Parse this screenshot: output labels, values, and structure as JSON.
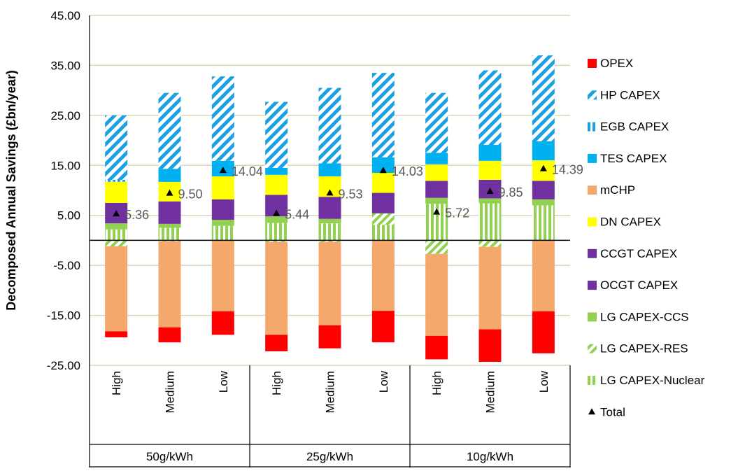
{
  "chart_data": {
    "type": "bar",
    "stacked": true,
    "title": "",
    "xlabel": "",
    "ylabel": "Decomposed Annual Savings (£bn/year)",
    "ylim": [
      -25,
      45
    ],
    "yticks": [
      "45.00",
      "35.00",
      "25.00",
      "15.00",
      "5.00",
      "-5.00",
      "-15.00",
      "-25.00"
    ],
    "grid": true,
    "legend_position": "right",
    "categories": [
      "High",
      "Medium",
      "Low",
      "High",
      "Medium",
      "Low",
      "High",
      "Medium",
      "Low"
    ],
    "groups": [
      {
        "label": "50g/kWh",
        "categories": [
          "High",
          "Medium",
          "Low"
        ]
      },
      {
        "label": "25g/kWh",
        "categories": [
          "High",
          "Medium",
          "Low"
        ]
      },
      {
        "label": "10g/kWh",
        "categories": [
          "High",
          "Medium",
          "Low"
        ]
      }
    ],
    "series": [
      {
        "name": "OPEX",
        "color": "#ff0000",
        "pattern": "solid",
        "values": [
          -1.2,
          -3.0,
          -4.7,
          -3.3,
          -4.6,
          -6.3,
          -4.7,
          -6.5,
          -8.4
        ]
      },
      {
        "name": "HP CAPEX",
        "color": "#1ba1e2",
        "pattern": "diagonal",
        "values": [
          12.9,
          15.2,
          16.9,
          13.2,
          15.1,
          16.9,
          12.0,
          14.9,
          17.2
        ]
      },
      {
        "name": "EGB CAPEX",
        "color": "#1ba1e2",
        "pattern": "vertical",
        "values": [
          0.4,
          0.0,
          0.0,
          0.0,
          0.0,
          0.0,
          0.0,
          0.0,
          0.0
        ]
      },
      {
        "name": "TES CAPEX",
        "color": "#00b0f0",
        "pattern": "solid",
        "values": [
          0.0,
          2.6,
          3.1,
          1.4,
          2.6,
          3.1,
          2.3,
          3.2,
          3.8
        ]
      },
      {
        "name": "mCHP",
        "color": "#f4a86b",
        "pattern": "solid",
        "values": [
          -17.0,
          -17.2,
          -14.2,
          -18.6,
          -16.7,
          -14.1,
          -16.4,
          -16.5,
          -14.2
        ]
      },
      {
        "name": "DN CAPEX",
        "color": "#ffff00",
        "pattern": "solid",
        "values": [
          4.2,
          3.9,
          4.6,
          4.0,
          4.1,
          4.0,
          3.3,
          3.8,
          4.1
        ]
      },
      {
        "name": "CCGT CAPEX",
        "color": "#7030a0",
        "pattern": "solid",
        "values": [
          0.0,
          0.0,
          0.0,
          0.0,
          0.0,
          0.0,
          0.0,
          0.0,
          0.0
        ]
      },
      {
        "name": "OCGT CAPEX",
        "color": "#7030a0",
        "pattern": "solid",
        "values": [
          4.1,
          4.5,
          4.1,
          4.3,
          4.4,
          4.1,
          3.4,
          3.7,
          3.7
        ]
      },
      {
        "name": "LG CAPEX-CCS",
        "color": "#92d050",
        "pattern": "solid",
        "values": [
          1.2,
          0.8,
          1.2,
          1.3,
          0.9,
          0.0,
          1.2,
          1.0,
          1.2
        ]
      },
      {
        "name": "LG CAPEX-RES",
        "color": "#92d050",
        "pattern": "diagonal",
        "values": [
          -1.2,
          -0.2,
          0.0,
          -0.3,
          -0.3,
          2.3,
          -2.7,
          -1.3,
          0.0
        ]
      },
      {
        "name": "LG CAPEX-Nuclear",
        "color": "#92d050",
        "pattern": "vertical",
        "values": [
          2.2,
          2.5,
          2.9,
          3.5,
          3.4,
          3.1,
          7.3,
          7.4,
          7.0
        ]
      },
      {
        "name": "Total",
        "marker": "triangle",
        "color": "#000000",
        "values": [
          5.36,
          9.5,
          14.04,
          5.44,
          9.53,
          14.03,
          5.72,
          9.85,
          14.39
        ]
      }
    ],
    "total_labels": [
      "5.36",
      "9.50",
      "14.04",
      "5.44",
      "9.53",
      "14.03",
      "5.72",
      "9.85",
      "14.39"
    ]
  },
  "legend": {
    "items": [
      {
        "label": "OPEX",
        "swatch": "solid",
        "color": "#ff0000"
      },
      {
        "label": "HP CAPEX",
        "swatch": "diagonal",
        "color": "#1ba1e2"
      },
      {
        "label": "EGB CAPEX",
        "swatch": "vertical",
        "color": "#1ba1e2"
      },
      {
        "label": "TES CAPEX",
        "swatch": "solid",
        "color": "#00b0f0"
      },
      {
        "label": "mCHP",
        "swatch": "solid",
        "color": "#f4a86b"
      },
      {
        "label": "DN CAPEX",
        "swatch": "solid",
        "color": "#ffff00"
      },
      {
        "label": "CCGT CAPEX",
        "swatch": "solid",
        "color": "#7030a0"
      },
      {
        "label": "OCGT CAPEX",
        "swatch": "solid",
        "color": "#7030a0"
      },
      {
        "label": "LG CAPEX-CCS",
        "swatch": "solid",
        "color": "#92d050"
      },
      {
        "label": "LG CAPEX-RES",
        "swatch": "diagonal",
        "color": "#92d050"
      },
      {
        "label": "LG CAPEX-Nuclear",
        "swatch": "vertical",
        "color": "#92d050"
      },
      {
        "label": "Total",
        "swatch": "triangle",
        "color": "#000000"
      }
    ]
  }
}
